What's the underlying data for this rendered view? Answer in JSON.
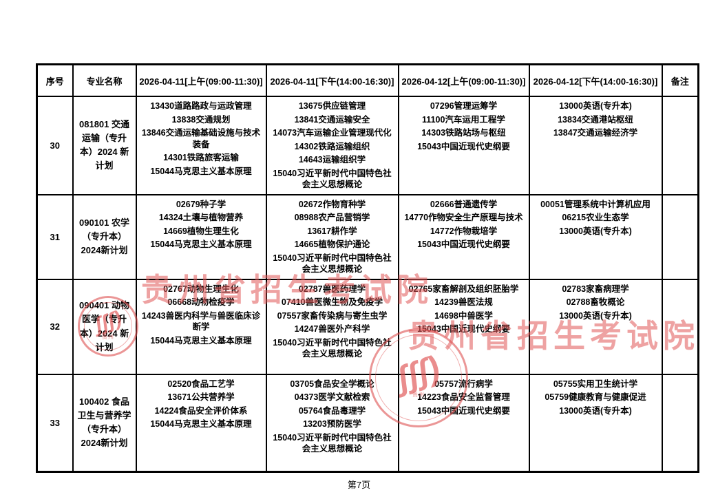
{
  "document": {
    "footer": {
      "page_label": "第7页"
    }
  },
  "watermark": {
    "text": "贵州省招生考试院",
    "seal_glyphs": "ʃʃʃ)",
    "seal_text": "贵州",
    "color": "#e05656"
  },
  "table": {
    "headers": [
      "序号",
      "专业名称",
      "2026-04-11[上午(09:00-11:30)]",
      "2026-04-11[下午(14:00-16:30)]",
      "2026-04-12[上午(09:00-11:30)]",
      "2026-04-12[下午(14:00-16:30)]",
      "备注"
    ],
    "rows": [
      {
        "seq": "30",
        "major": "081801 交通运输（专升本）2024 新计划",
        "sessions": [
          [
            "13430道路路政与运政管理",
            "13838交通规划",
            "13846交通运输基础设施与技术装备",
            "14301铁路旅客运输",
            "15044马克思主义基本原理"
          ],
          [
            "13675供应链管理",
            "13841交通运输安全",
            "14073汽车运输企业管理现代化",
            "14302铁路运输组织",
            "14643运输组织学",
            "15040习近平新时代中国特色社会主义思想概论"
          ],
          [
            "07296管理运筹学",
            "11100汽车运用工程学",
            "14303铁路站场与枢纽",
            "15043中国近现代史纲要"
          ],
          [
            "13000英语(专升本)",
            "13834交通港站枢纽",
            "13847交通运输经济学"
          ]
        ],
        "remark": ""
      },
      {
        "seq": "31",
        "major": "090101 农学（专升本）2024新计划",
        "sessions": [
          [
            "02679种子学",
            "14324土壤与植物营养",
            "14669植物生理生化",
            "15044马克思主义基本原理"
          ],
          [
            "02672作物育种学",
            "08988农产品营销学",
            "13617耕作学",
            "14665植物保护通论",
            "15040习近平新时代中国特色社会主义思想概论"
          ],
          [
            "02666普通遗传学",
            "14770作物安全生产原理与技术",
            "14772作物栽培学",
            "15043中国近现代史纲要"
          ],
          [
            "00051管理系统中计算机应用",
            "06215农业生态学",
            "13000英语(专升本)"
          ]
        ],
        "remark": ""
      },
      {
        "seq": "32",
        "major": "090401 动物医学（专升本）2024 新计划",
        "sessions": [
          [
            "02767动物生理生化",
            "06668动物检疫学",
            "14243兽医内科学与兽医临床诊断学",
            "15044马克思主义基本原理"
          ],
          [
            "02787兽医药理学",
            "07410兽医微生物及免疫学",
            "07557家畜传染病与寄生虫学",
            "14247兽医外产科学",
            "15040习近平新时代中国特色社会主义思想概论"
          ],
          [
            "02765家畜解剖及组织胚胎学",
            "14239兽医法规",
            "14698中兽医学",
            "15043中国近现代史纲要"
          ],
          [
            "02783家畜病理学",
            "02788畜牧概论",
            "13000英语(专升本)"
          ]
        ],
        "remark": ""
      },
      {
        "seq": "33",
        "major": "100402 食品卫生与营养学（专升本）2024新计划",
        "sessions": [
          [
            "02520食品工艺学",
            "13671公共营养学",
            "14224食品安全评价体系",
            "15044马克思主义基本原理"
          ],
          [
            "03705食品安全学概论",
            "04373医学文献检索",
            "05764食品毒理学",
            "13203预防医学",
            "15040习近平新时代中国特色社会主义思想概论"
          ],
          [
            "05757流行病学",
            "14223食品安全监督管理",
            "15043中国近现代史纲要"
          ],
          [
            "05755实用卫生统计学",
            "05759健康教育与健康促进",
            "13000英语(专升本)"
          ]
        ],
        "remark": ""
      }
    ]
  }
}
